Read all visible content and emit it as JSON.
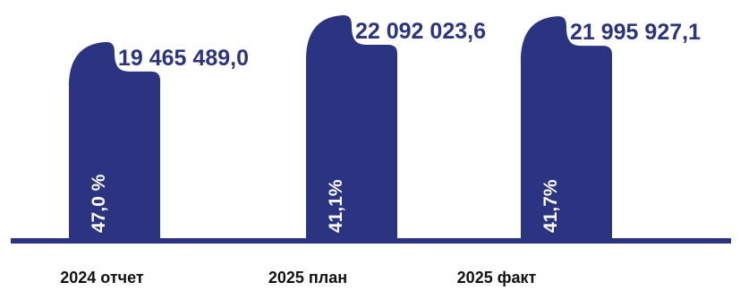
{
  "chart_data": {
    "type": "bar",
    "categories": [
      "2024 отчет",
      "2025 план",
      "2025 факт"
    ],
    "values": [
      19465489.0,
      22092023.6,
      21995927.1
    ],
    "value_labels": [
      "19 465 489,0",
      "22 092 023,6",
      "21 995 927,1"
    ],
    "percent_labels": [
      "47,0 %",
      "41,1%",
      "41,7%"
    ],
    "title": "",
    "xlabel": "",
    "ylabel": "",
    "ylim": [
      0,
      22092023.6
    ],
    "grid": false,
    "legend": "none"
  },
  "colors": {
    "bar": "#2b3480",
    "value_text": "#2b3480",
    "baseline": "#2b3480",
    "category_text": "#111111"
  }
}
